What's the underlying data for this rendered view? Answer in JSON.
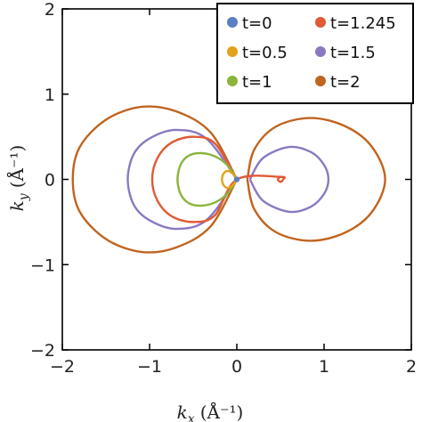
{
  "chart_data": {
    "type": "line",
    "title": "",
    "xlabel": {
      "var": "k",
      "sub": "x",
      "unit": "(Å⁻¹)"
    },
    "ylabel": {
      "var": "k",
      "sub": "y",
      "unit": "(Å⁻¹)"
    },
    "xlim": [
      -2,
      2
    ],
    "ylim": [
      -2,
      2
    ],
    "xticks": [
      -2,
      -1,
      0,
      1,
      2
    ],
    "yticks": [
      -2,
      -1,
      0,
      1,
      2
    ],
    "xtick_labels": [
      "−2",
      "−1",
      "0",
      "1",
      "2"
    ],
    "ytick_labels": [
      "−2",
      "−1",
      "0",
      "1",
      "2"
    ],
    "grid": false,
    "legend_position": "top-right",
    "series": [
      {
        "name": "t=0",
        "color": "#5b7fc0",
        "kind": "point",
        "x": [
          0
        ],
        "y": [
          0
        ]
      },
      {
        "name": "t=0.5",
        "color": "#e3a21a",
        "kind": "closed-curve",
        "x": [
          0,
          -0.04,
          -0.1,
          -0.15,
          -0.17,
          -0.15,
          -0.1,
          -0.04,
          0
        ],
        "y": [
          0,
          0.06,
          0.1,
          0.07,
          0,
          -0.07,
          -0.1,
          -0.06,
          0
        ]
      },
      {
        "name": "t=1",
        "color": "#8ab43c",
        "kind": "closed-curve",
        "x": [
          0,
          -0.12,
          -0.3,
          -0.5,
          -0.63,
          -0.68,
          -0.63,
          -0.5,
          -0.3,
          -0.12,
          0
        ],
        "y": [
          0,
          0.18,
          0.29,
          0.3,
          0.2,
          0,
          -0.2,
          -0.3,
          -0.29,
          -0.18,
          0
        ]
      },
      {
        "name": "t=1.245",
        "color": "#e05a35",
        "kind": "closed-curve",
        "x": [
          0,
          -0.25,
          -0.5,
          -0.75,
          -0.91,
          -0.97,
          -0.91,
          -0.75,
          -0.5,
          -0.25,
          0,
          0.5,
          0.53,
          0.5,
          0.47,
          0.5
        ],
        "y": [
          0,
          0.42,
          0.5,
          0.43,
          0.25,
          0,
          -0.25,
          -0.43,
          -0.5,
          -0.42,
          0,
          0.03,
          0,
          -0.03,
          0,
          0.03
        ]
      },
      {
        "name": "t=1.5",
        "color": "#8a79c2",
        "kind": "closed-curve",
        "x": [
          0,
          -0.35,
          -0.7,
          -1.0,
          -1.18,
          -1.25,
          -1.18,
          -1.0,
          -0.7,
          -0.35,
          0
        ],
        "y": [
          0,
          0.48,
          0.58,
          0.48,
          0.3,
          0,
          -0.3,
          -0.48,
          -0.58,
          -0.48,
          0
        ],
        "x2": [
          0.15,
          0.3,
          0.6,
          0.85,
          1.0,
          1.05,
          1.0,
          0.85,
          0.6,
          0.3,
          0.15
        ],
        "y2": [
          0,
          0.25,
          0.38,
          0.32,
          0.17,
          0,
          -0.17,
          -0.32,
          -0.38,
          -0.25,
          0
        ]
      },
      {
        "name": "t=2",
        "color": "#c0641f",
        "kind": "closed-curve",
        "x": [
          0,
          -0.3,
          -0.7,
          -1.1,
          -1.5,
          -1.8,
          -1.88,
          -1.8,
          -1.5,
          -1.1,
          -0.7,
          -0.3,
          0
        ],
        "y": [
          0,
          0.55,
          0.8,
          0.85,
          0.7,
          0.38,
          0,
          -0.38,
          -0.7,
          -0.85,
          -0.8,
          -0.55,
          0
        ],
        "x2": [
          0.12,
          0.2,
          0.45,
          0.85,
          1.25,
          1.55,
          1.7,
          1.55,
          1.25,
          0.85,
          0.45,
          0.2,
          0.12
        ],
        "y2": [
          0,
          0.35,
          0.62,
          0.72,
          0.62,
          0.38,
          0,
          -0.38,
          -0.62,
          -0.72,
          -0.62,
          -0.35,
          0
        ]
      }
    ]
  }
}
